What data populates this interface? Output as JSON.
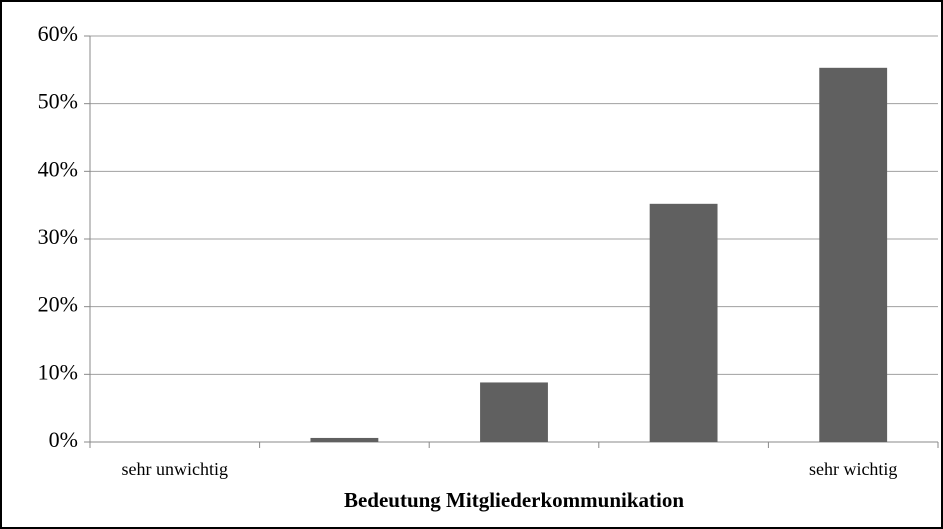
{
  "chart_data": {
    "type": "bar",
    "x_label": "Bedeutung Mitgliederkommunikation",
    "categories": [
      "sehr unwichtig",
      null,
      null,
      null,
      "sehr wichtig"
    ],
    "values": [
      0,
      0.6,
      8.8,
      35.2,
      55.3
    ],
    "color": "#606060",
    "ylim": [
      0,
      60
    ],
    "yticks": [
      {
        "value": 0,
        "label": "0%"
      },
      {
        "value": 10,
        "label": "10%"
      },
      {
        "value": 20,
        "label": "20%"
      },
      {
        "value": 30,
        "label": "30%"
      },
      {
        "value": 40,
        "label": "40%"
      },
      {
        "value": 50,
        "label": "50%"
      },
      {
        "value": 60,
        "label": "60%"
      }
    ],
    "grid": true
  }
}
